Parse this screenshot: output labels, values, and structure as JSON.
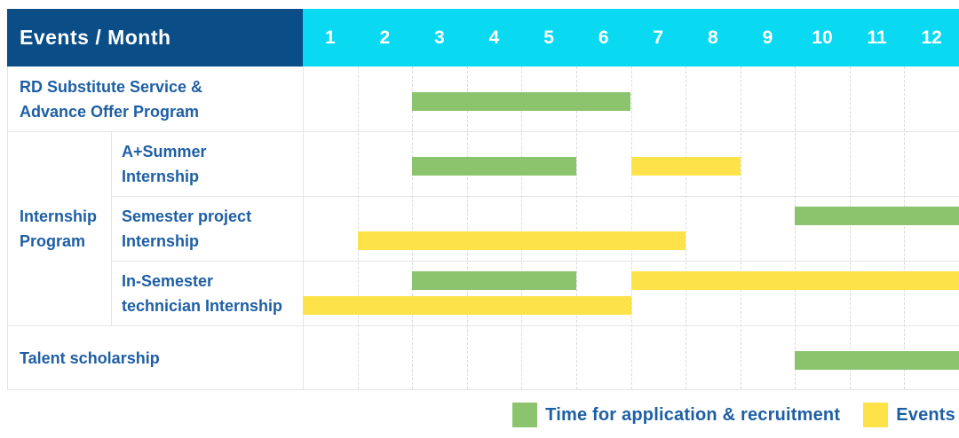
{
  "chart_data": {
    "type": "bar",
    "subtype": "gantt-schedule-table",
    "title": "Events / Month",
    "x_categories": [
      "1",
      "2",
      "3",
      "4",
      "5",
      "6",
      "7",
      "8",
      "9",
      "10",
      "11",
      "12"
    ],
    "x_range": [
      1,
      12
    ],
    "grid": "dashed-vertical-month-lines",
    "legend_position": "bottom-right",
    "legend": [
      {
        "key": "application",
        "label": "Time for application & recruitment",
        "color": "#8bc46d"
      },
      {
        "key": "event",
        "label": "Events",
        "color": "#fde24a"
      }
    ],
    "groups": [
      {
        "label_lines": [
          "Internship",
          "Program"
        ],
        "row_start": 2,
        "row_end": 4
      }
    ],
    "rows": [
      {
        "label_lines": [
          "RD Substitute Service &",
          "Advance Offer Program"
        ],
        "grouped": false,
        "bars": [
          {
            "kind": "application",
            "start_month": 3,
            "end_month": 6,
            "lane": "center"
          }
        ]
      },
      {
        "label_lines": [
          "A+Summer",
          "Internship"
        ],
        "grouped": true,
        "bars": [
          {
            "kind": "application",
            "start_month": 3,
            "end_month": 5,
            "lane": "center"
          },
          {
            "kind": "event",
            "start_month": 7,
            "end_month": 8,
            "lane": "center"
          }
        ]
      },
      {
        "label_lines": [
          "Semester project",
          "Internship"
        ],
        "grouped": true,
        "bars": [
          {
            "kind": "application",
            "start_month": 10,
            "end_month": 12,
            "lane": "top"
          },
          {
            "kind": "event",
            "start_month": 2,
            "end_month": 7,
            "lane": "bottom"
          }
        ]
      },
      {
        "label_lines": [
          "In-Semester",
          "technician Internship"
        ],
        "grouped": true,
        "bars": [
          {
            "kind": "application",
            "start_month": 3,
            "end_month": 5,
            "lane": "top"
          },
          {
            "kind": "event",
            "start_month": 7,
            "end_month": 12,
            "lane": "top"
          },
          {
            "kind": "event",
            "start_month": 1,
            "end_month": 6,
            "lane": "bottom"
          }
        ]
      },
      {
        "label_lines": [
          "Talent scholarship"
        ],
        "grouped": false,
        "bars": [
          {
            "kind": "application",
            "start_month": 10,
            "end_month": 12,
            "lane": "center"
          }
        ]
      }
    ],
    "colors": {
      "header_bg": "#0a4d87",
      "header_text": "#ffffff",
      "month_header_bg": "#09d9f1",
      "month_header_text": "#ffffff",
      "label_text": "#1e5fa4",
      "application_bar": "#8bc46d",
      "event_bar": "#fde24a",
      "grid_solid": "#e4e5e9",
      "grid_dashed": "#d8dade"
    }
  }
}
